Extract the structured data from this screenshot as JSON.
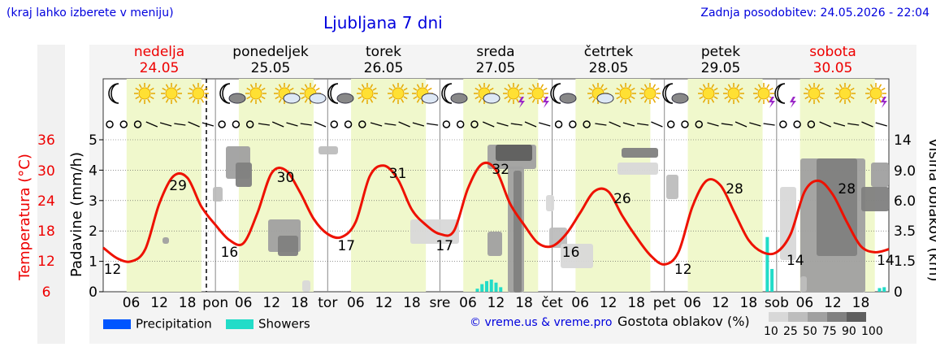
{
  "header": {
    "top_note": "(kraj lahko izberete v meniju)",
    "title": "Ljubljana 7 dni",
    "updated": "Zadnja posodobitev: 24.05.2026 - 22:04"
  },
  "days": [
    {
      "name": "nedelja",
      "date": "24.05",
      "weekend": true
    },
    {
      "name": "ponedeljek",
      "date": "25.05",
      "weekend": false
    },
    {
      "name": "torek",
      "date": "26.05",
      "weekend": false
    },
    {
      "name": "sreda",
      "date": "27.05",
      "weekend": false
    },
    {
      "name": "četrtek",
      "date": "28.05",
      "weekend": false
    },
    {
      "name": "petek",
      "date": "29.05",
      "weekend": false
    },
    {
      "name": "sobota",
      "date": "30.05",
      "weekend": true
    }
  ],
  "chart_data": {
    "type": "line",
    "title": "Ljubljana 7 dni",
    "ylabel_left_temp": "Temperatura (°C)",
    "ylabel_left_precip": "Padavine (mm/h)",
    "ylabel_right": "Višina oblakov (km)",
    "temp_ticks": [
      "36",
      "30",
      "24",
      "18",
      "12",
      "6"
    ],
    "precip_ticks": [
      "0",
      "1",
      "2",
      "3",
      "4",
      "5"
    ],
    "precip_ylim": [
      0,
      5
    ],
    "cloud_height_ticks": [
      "0",
      "1.5",
      "3.5",
      "6.0",
      "9.0",
      "14"
    ],
    "x_tick_labels": [
      "06",
      "12",
      "18",
      "pon",
      "06",
      "12",
      "18",
      "tor",
      "06",
      "12",
      "18",
      "sre",
      "06",
      "12",
      "18",
      "čet",
      "06",
      "12",
      "18",
      "pet",
      "06",
      "12",
      "18",
      "sob",
      "06",
      "12",
      "18"
    ],
    "temperature_labels": [
      {
        "label": "12",
        "day": 0,
        "hour": 2
      },
      {
        "label": "29",
        "day": 0,
        "hour": 16
      },
      {
        "label": "16",
        "day": 1,
        "hour": 3
      },
      {
        "label": "30",
        "day": 1,
        "hour": 15
      },
      {
        "label": "17",
        "day": 2,
        "hour": 4
      },
      {
        "label": "31",
        "day": 2,
        "hour": 15
      },
      {
        "label": "17",
        "day": 3,
        "hour": 1
      },
      {
        "label": "32",
        "day": 3,
        "hour": 13
      },
      {
        "label": "16",
        "day": 4,
        "hour": 4
      },
      {
        "label": "26",
        "day": 4,
        "hour": 15
      },
      {
        "label": "12",
        "day": 5,
        "hour": 4
      },
      {
        "label": "28",
        "day": 5,
        "hour": 15
      },
      {
        "label": "14",
        "day": 6,
        "hour": 4
      },
      {
        "label": "28",
        "day": 6,
        "hour": 15
      },
      {
        "label": "14",
        "day": 6,
        "hour": 24
      }
    ],
    "series": [
      {
        "name": "Temperatura",
        "color": "#ee1100",
        "x_hours": [
          0,
          3,
          6,
          9,
          12,
          15,
          18,
          21,
          24,
          27,
          30,
          33,
          36,
          39,
          42,
          45,
          48,
          51,
          54,
          57,
          60,
          63,
          66,
          69,
          72,
          75,
          78,
          81,
          84,
          87,
          90,
          93,
          96,
          99,
          102,
          105,
          108,
          111,
          114,
          117,
          120,
          123,
          126,
          129,
          132,
          135,
          138,
          141,
          144,
          147,
          150,
          153,
          156,
          159,
          162,
          165,
          168
        ],
        "y_precip_axis": [
          1.45,
          1.1,
          1.0,
          1.4,
          2.9,
          3.8,
          3.75,
          2.8,
          2.2,
          1.7,
          1.6,
          2.6,
          3.9,
          4.0,
          3.3,
          2.4,
          1.9,
          1.8,
          2.3,
          3.8,
          4.15,
          3.7,
          2.7,
          2.2,
          1.9,
          2.0,
          3.4,
          4.2,
          4.0,
          2.9,
          2.2,
          1.6,
          1.5,
          1.9,
          2.6,
          3.3,
          3.3,
          2.5,
          1.8,
          1.2,
          0.9,
          1.3,
          2.8,
          3.65,
          3.5,
          2.6,
          1.7,
          1.3,
          1.3,
          1.9,
          3.3,
          3.65,
          3.2,
          2.3,
          1.5,
          1.3,
          1.4
        ]
      },
      {
        "name": "Showers",
        "color": "#22dcc8",
        "x_hours": [
          80,
          81,
          82,
          83,
          84,
          85,
          142,
          143,
          166,
          167
        ],
        "values": [
          0.1,
          0.25,
          0.35,
          0.4,
          0.3,
          0.15,
          1.8,
          0.75,
          0.12,
          0.15
        ]
      }
    ]
  },
  "legend": {
    "precipitation": {
      "label": "Precipitation",
      "color": "#0055ff"
    },
    "showers": {
      "label": "Showers",
      "color": "#22dcc8"
    }
  },
  "footer": {
    "copyright": "© vreme.us & vreme.pro",
    "cloud_title": "Gostota oblakov (%)",
    "cloud_scale": [
      "10",
      "25",
      "50",
      "75",
      "90",
      "100"
    ],
    "cloud_scale_colors": [
      "#d8d8d8",
      "#bdbdbd",
      "#a0a0a0",
      "#808080",
      "#5e5e5e"
    ]
  }
}
